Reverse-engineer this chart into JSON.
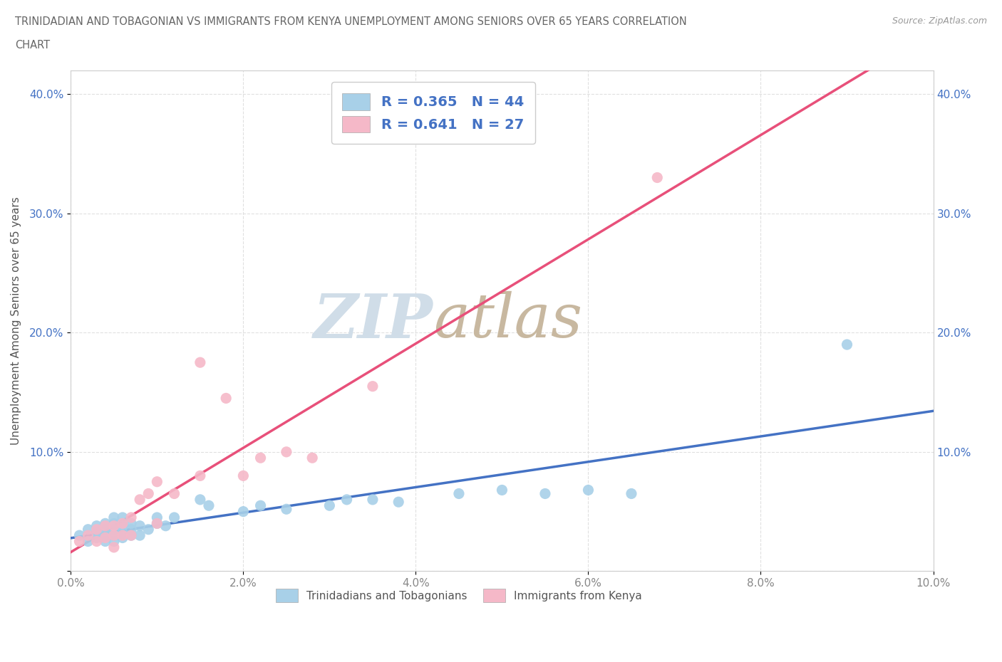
{
  "title_line1": "TRINIDADIAN AND TOBAGONIAN VS IMMIGRANTS FROM KENYA UNEMPLOYMENT AMONG SENIORS OVER 65 YEARS CORRELATION",
  "title_line2": "CHART",
  "source_text": "Source: ZipAtlas.com",
  "ylabel": "Unemployment Among Seniors over 65 years",
  "xlim": [
    0.0,
    0.1
  ],
  "ylim": [
    0.0,
    0.42
  ],
  "xticks": [
    0.0,
    0.02,
    0.04,
    0.06,
    0.08,
    0.1
  ],
  "yticks": [
    0.0,
    0.1,
    0.2,
    0.3,
    0.4
  ],
  "xticklabels": [
    "0.0%",
    "2.0%",
    "4.0%",
    "6.0%",
    "8.0%",
    "10.0%"
  ],
  "yticklabels": [
    "",
    "10.0%",
    "20.0%",
    "30.0%",
    "40.0%"
  ],
  "blue_R": 0.365,
  "blue_N": 44,
  "pink_R": 0.641,
  "pink_N": 27,
  "blue_color": "#a8d0e8",
  "pink_color": "#f5b8c8",
  "blue_line_color": "#4472c4",
  "pink_line_color": "#e8507a",
  "trend_line_color": "#bbbbbb",
  "grid_color": "#dddddd",
  "background_color": "#ffffff",
  "watermark_zip": "ZIP",
  "watermark_atlas": "atlas",
  "watermark_color": "#d0dde8",
  "watermark_atlas_color": "#c8b8a0",
  "title_color": "#666666",
  "legend_text_color": "#4472c4",
  "blue_scatter_x": [
    0.001,
    0.002,
    0.002,
    0.003,
    0.003,
    0.003,
    0.004,
    0.004,
    0.004,
    0.004,
    0.005,
    0.005,
    0.005,
    0.005,
    0.005,
    0.006,
    0.006,
    0.006,
    0.006,
    0.007,
    0.007,
    0.007,
    0.008,
    0.008,
    0.009,
    0.01,
    0.01,
    0.011,
    0.012,
    0.015,
    0.016,
    0.02,
    0.022,
    0.025,
    0.03,
    0.032,
    0.035,
    0.038,
    0.045,
    0.05,
    0.055,
    0.06,
    0.065,
    0.09
  ],
  "blue_scatter_y": [
    0.03,
    0.025,
    0.035,
    0.028,
    0.032,
    0.038,
    0.025,
    0.03,
    0.035,
    0.04,
    0.025,
    0.03,
    0.035,
    0.04,
    0.045,
    0.028,
    0.032,
    0.038,
    0.045,
    0.03,
    0.035,
    0.04,
    0.03,
    0.038,
    0.035,
    0.04,
    0.045,
    0.038,
    0.045,
    0.06,
    0.055,
    0.05,
    0.055,
    0.052,
    0.055,
    0.06,
    0.06,
    0.058,
    0.065,
    0.068,
    0.065,
    0.068,
    0.065,
    0.19
  ],
  "pink_scatter_x": [
    0.001,
    0.002,
    0.003,
    0.003,
    0.004,
    0.004,
    0.005,
    0.005,
    0.005,
    0.006,
    0.006,
    0.007,
    0.007,
    0.008,
    0.009,
    0.01,
    0.01,
    0.012,
    0.015,
    0.015,
    0.018,
    0.02,
    0.022,
    0.025,
    0.028,
    0.035,
    0.068
  ],
  "pink_scatter_y": [
    0.025,
    0.03,
    0.025,
    0.035,
    0.028,
    0.038,
    0.02,
    0.03,
    0.038,
    0.03,
    0.04,
    0.03,
    0.045,
    0.06,
    0.065,
    0.075,
    0.04,
    0.065,
    0.08,
    0.175,
    0.145,
    0.08,
    0.095,
    0.1,
    0.095,
    0.155,
    0.33
  ]
}
